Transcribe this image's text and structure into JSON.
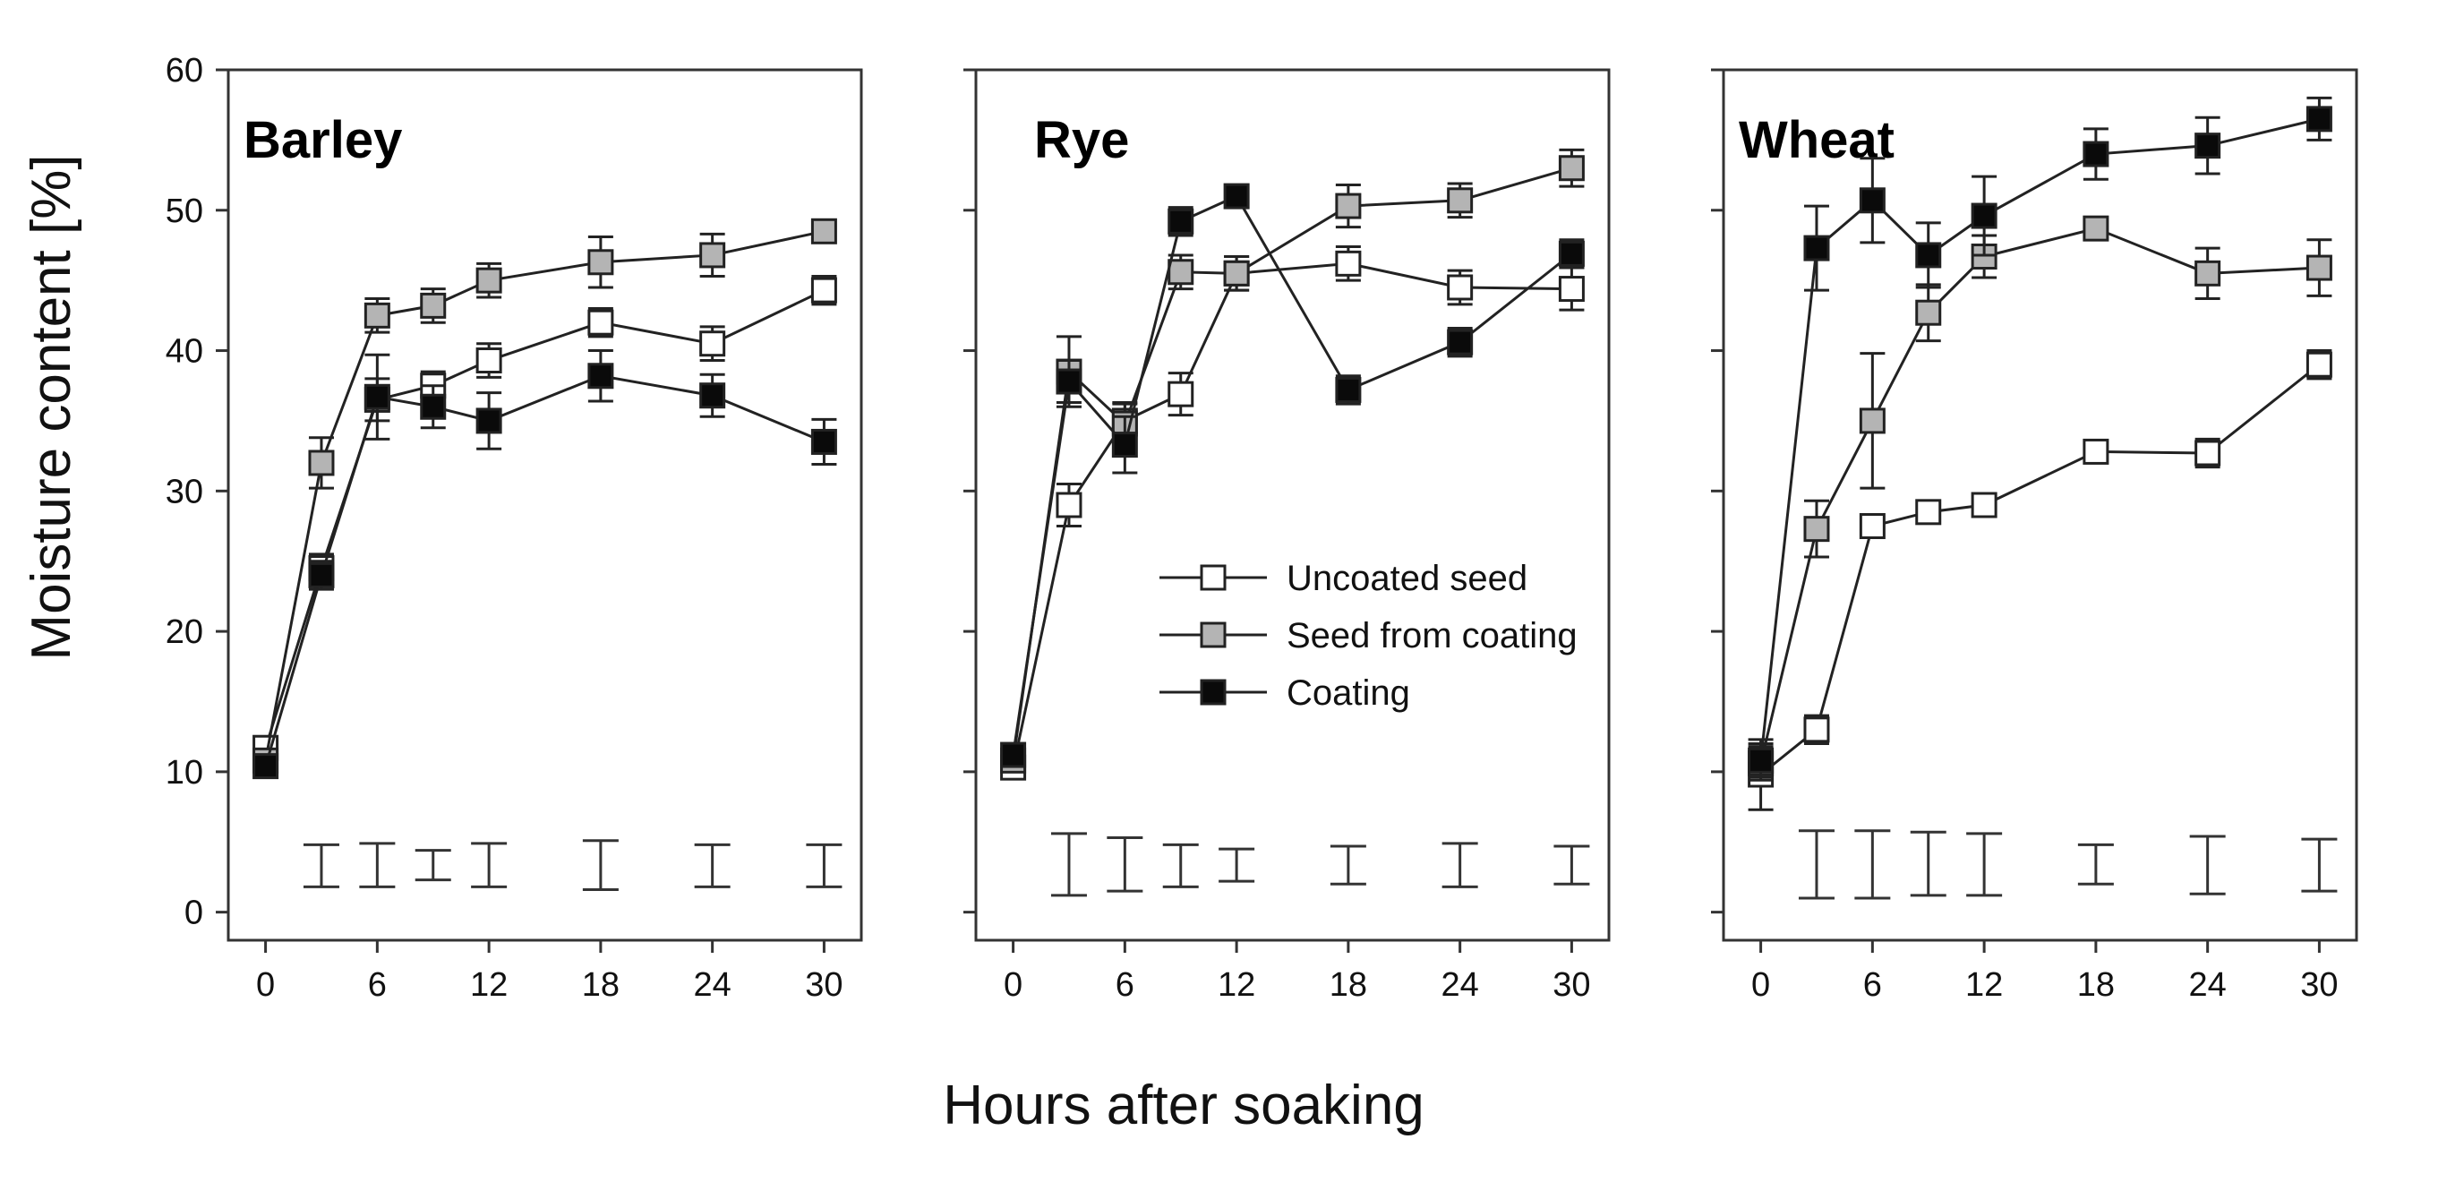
{
  "chart_data": {
    "type": "line",
    "xlabel": "Hours after soaking",
    "ylabel": "Moisture content [%]",
    "xlim": [
      -2,
      32
    ],
    "ylim": [
      -2,
      60
    ],
    "x_ticks": [
      0,
      6,
      12,
      18,
      24,
      30
    ],
    "y_ticks": [
      0,
      10,
      20,
      30,
      40,
      50,
      60
    ],
    "legend": {
      "placement": "inside middle panel, center-right",
      "entries": [
        "Uncoated seed",
        "Seed from coating",
        "Coating"
      ]
    },
    "series_style": {
      "Uncoated seed": "#ffffff",
      "Seed from coating": "#b4b4b4",
      "Coating": "#0a0a0a"
    },
    "panels": [
      {
        "title": "Barley",
        "x": [
          0,
          3,
          6,
          9,
          12,
          18,
          24,
          30
        ],
        "series": [
          {
            "name": "Uncoated seed",
            "values": [
              11.7,
              24.5,
              36.5,
              37.5,
              39.3,
              42.0,
              40.5,
              44.3
            ],
            "errors": [
              0.6,
              1.0,
              1.5,
              1.0,
              1.2,
              1.0,
              1.2,
              1.0
            ]
          },
          {
            "name": "Seed from coating",
            "values": [
              10.8,
              32.0,
              42.5,
              43.2,
              45.0,
              46.3,
              46.8,
              48.5
            ],
            "errors": [
              0.6,
              1.8,
              1.2,
              1.2,
              1.2,
              1.8,
              1.5,
              0.8
            ]
          },
          {
            "name": "Coating",
            "values": [
              10.4,
              24.0,
              36.7,
              36.0,
              35.0,
              38.2,
              36.8,
              33.5
            ],
            "errors": [
              0.5,
              1.0,
              3.0,
              1.5,
              2.0,
              1.8,
              1.5,
              1.6
            ]
          }
        ],
        "lsd": [
          {
            "x": 3,
            "low": 1.8,
            "high": 4.8
          },
          {
            "x": 6,
            "low": 1.8,
            "high": 4.9
          },
          {
            "x": 9,
            "low": 2.3,
            "high": 4.4
          },
          {
            "x": 12,
            "low": 1.8,
            "high": 4.9
          },
          {
            "x": 18,
            "low": 1.6,
            "high": 5.1
          },
          {
            "x": 24,
            "low": 1.8,
            "high": 4.8
          },
          {
            "x": 30,
            "low": 1.8,
            "high": 4.8
          }
        ]
      },
      {
        "title": "Rye",
        "x": [
          0,
          3,
          6,
          9,
          12,
          18,
          24,
          30
        ],
        "series": [
          {
            "name": "Uncoated seed",
            "values": [
              10.3,
              29.0,
              35.0,
              36.9,
              45.5,
              46.2,
              44.5,
              44.4
            ],
            "errors": [
              0.4,
              1.5,
              1.2,
              1.5,
              1.2,
              1.2,
              1.2,
              1.5
            ]
          },
          {
            "name": "Seed from coating",
            "values": [
              10.8,
              38.5,
              34.8,
              45.6,
              45.5,
              50.3,
              50.7,
              53.0
            ],
            "errors": [
              0.6,
              2.5,
              1.5,
              1.2,
              1.2,
              1.5,
              1.2,
              1.3
            ]
          },
          {
            "name": "Coating",
            "values": [
              11.2,
              37.8,
              33.3,
              49.2,
              51.0,
              37.2,
              40.6,
              46.9
            ],
            "errors": [
              0.6,
              1.5,
              2.0,
              1.0,
              0.8,
              1.0,
              1.0,
              1.0
            ]
          }
        ],
        "lsd": [
          {
            "x": 3,
            "low": 1.2,
            "high": 5.6
          },
          {
            "x": 6,
            "low": 1.5,
            "high": 5.3
          },
          {
            "x": 9,
            "low": 1.8,
            "high": 4.8
          },
          {
            "x": 12,
            "low": 2.2,
            "high": 4.5
          },
          {
            "x": 18,
            "low": 2.0,
            "high": 4.7
          },
          {
            "x": 24,
            "low": 1.8,
            "high": 4.9
          },
          {
            "x": 30,
            "low": 2.0,
            "high": 4.7
          }
        ]
      },
      {
        "title": "Wheat",
        "x": [
          0,
          3,
          6,
          9,
          12,
          18,
          24,
          30
        ],
        "series": [
          {
            "name": "Uncoated seed",
            "values": [
              9.8,
              13.0,
              27.5,
              28.5,
              29.0,
              32.8,
              32.7,
              39.0
            ],
            "errors": [
              2.5,
              1.0,
              0.8,
              0.7,
              0.6,
              0.8,
              1.0,
              1.0
            ]
          },
          {
            "name": "Seed from coating",
            "values": [
              10.6,
              27.3,
              35.0,
              42.7,
              46.7,
              48.7,
              45.5,
              45.9
            ],
            "errors": [
              1.2,
              2.0,
              4.8,
              2.0,
              1.5,
              0.8,
              1.8,
              2.0
            ]
          },
          {
            "name": "Coating",
            "values": [
              10.8,
              47.3,
              50.7,
              46.8,
              49.6,
              54.0,
              54.6,
              56.5
            ],
            "errors": [
              1.2,
              3.0,
              3.0,
              2.3,
              2.8,
              1.8,
              2.0,
              1.5
            ]
          }
        ],
        "lsd": [
          {
            "x": 3,
            "low": 1.0,
            "high": 5.8
          },
          {
            "x": 6,
            "low": 1.0,
            "high": 5.8
          },
          {
            "x": 9,
            "low": 1.2,
            "high": 5.7
          },
          {
            "x": 12,
            "low": 1.2,
            "high": 5.6
          },
          {
            "x": 18,
            "low": 2.0,
            "high": 4.8
          },
          {
            "x": 24,
            "low": 1.3,
            "high": 5.4
          },
          {
            "x": 30,
            "low": 1.5,
            "high": 5.2
          }
        ]
      }
    ]
  }
}
